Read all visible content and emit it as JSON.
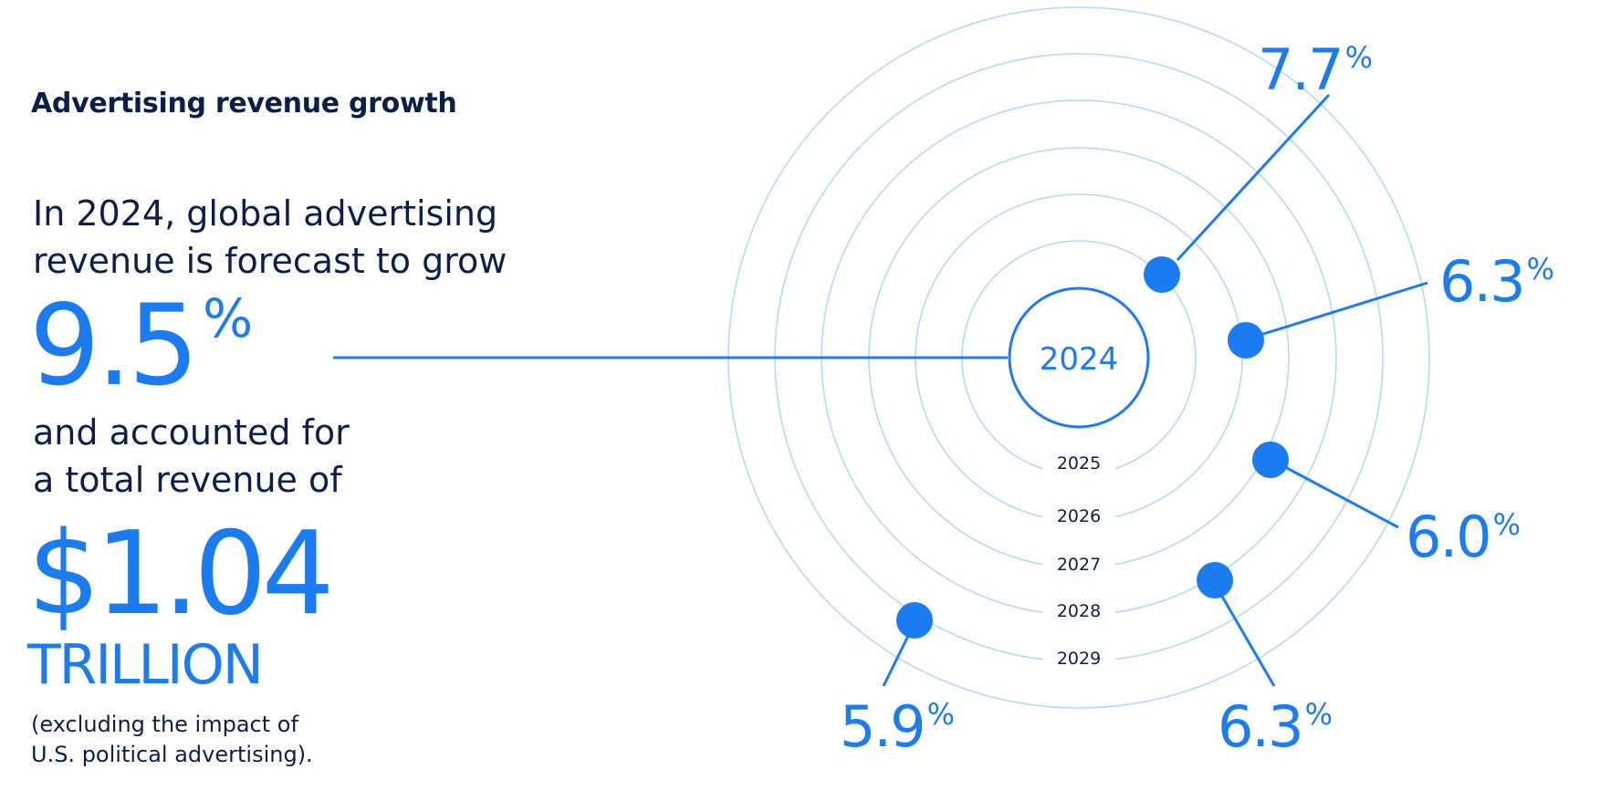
{
  "title": "Advertising revenue growth",
  "lead": [
    "In 2024, global advertising",
    "revenue is forecast to grow"
  ],
  "headline_growth": {
    "value": "9.5",
    "unit": "%"
  },
  "lead2": [
    "and accounted for",
    "a total revenue of"
  ],
  "headline_revenue": {
    "value": "$1.04",
    "unit": "TRILLION"
  },
  "footnote": [
    "(excluding the impact of",
    "U.S. political advertising)."
  ],
  "colors": {
    "accent": "#1a7cf0",
    "navy": "#0b1f4a",
    "ring": "#b6d7fb"
  },
  "chart_data": {
    "type": "radial",
    "center_label": "2024",
    "x": [
      "2024",
      "2025",
      "2026",
      "2027",
      "2028",
      "2029"
    ],
    "values": [
      9.5,
      7.7,
      6.3,
      6.0,
      6.3,
      5.9
    ],
    "labels": [
      "9.5%",
      "7.7%",
      "6.3%",
      "6.0%",
      "6.3%",
      "5.9%"
    ],
    "unit": "%",
    "ring_labels": [
      "2025",
      "2026",
      "2027",
      "2028",
      "2029"
    ],
    "points": [
      {
        "year": "2025",
        "value": "7.7",
        "unit": "%"
      },
      {
        "year": "2026",
        "value": "6.3",
        "unit": "%"
      },
      {
        "year": "2027",
        "value": "6.0",
        "unit": "%"
      },
      {
        "year": "2028",
        "value": "6.3",
        "unit": "%"
      },
      {
        "year": "2029",
        "value": "5.9",
        "unit": "%"
      }
    ]
  }
}
